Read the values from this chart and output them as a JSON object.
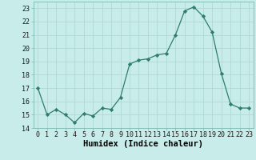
{
  "x": [
    0,
    1,
    2,
    3,
    4,
    5,
    6,
    7,
    8,
    9,
    10,
    11,
    12,
    13,
    14,
    15,
    16,
    17,
    18,
    19,
    20,
    21,
    22,
    23
  ],
  "y": [
    17.0,
    15.0,
    15.4,
    15.0,
    14.4,
    15.1,
    14.9,
    15.5,
    15.4,
    16.3,
    18.8,
    19.1,
    19.2,
    19.5,
    19.6,
    21.0,
    22.8,
    23.1,
    22.4,
    21.2,
    18.1,
    15.8,
    15.5,
    15.5
  ],
  "line_color": "#2e7d6e",
  "marker": "D",
  "marker_size": 2.2,
  "bg_color": "#c8ecea",
  "grid_color": "#b0d8d4",
  "xlabel": "Humidex (Indice chaleur)",
  "ylabel": "",
  "ylim": [
    14,
    23.5
  ],
  "xlim": [
    -0.5,
    23.5
  ],
  "yticks": [
    14,
    15,
    16,
    17,
    18,
    19,
    20,
    21,
    22,
    23
  ],
  "xticks": [
    0,
    1,
    2,
    3,
    4,
    5,
    6,
    7,
    8,
    9,
    10,
    11,
    12,
    13,
    14,
    15,
    16,
    17,
    18,
    19,
    20,
    21,
    22,
    23
  ],
  "tick_fontsize": 6.0,
  "xlabel_fontsize": 7.5
}
